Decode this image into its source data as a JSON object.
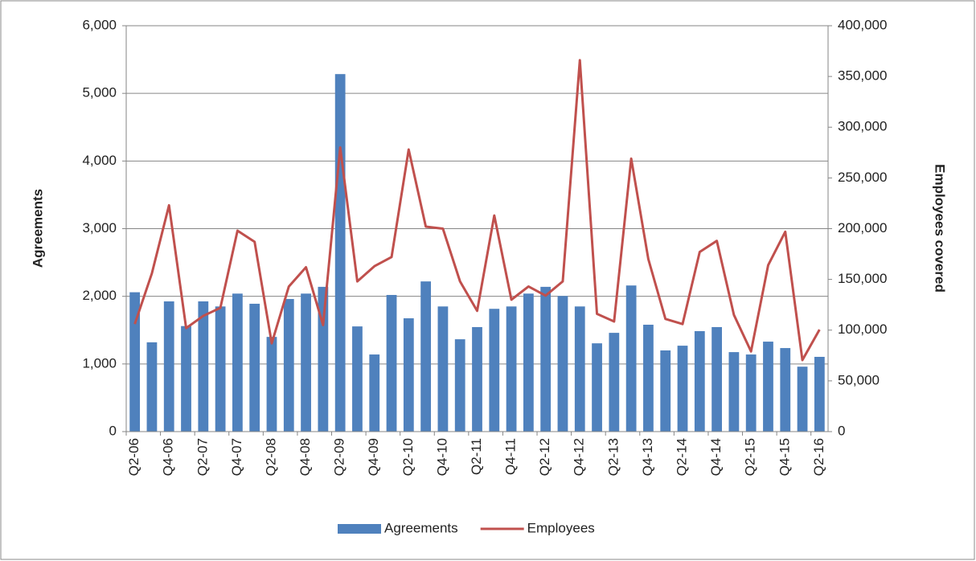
{
  "chart_data": {
    "type": "bar-line",
    "categories": [
      "Q2-06",
      null,
      "Q4-06",
      null,
      "Q2-07",
      null,
      "Q4-07",
      null,
      "Q2-08",
      null,
      "Q4-08",
      null,
      "Q2-09",
      null,
      "Q4-09",
      null,
      "Q2-10",
      null,
      "Q4-10",
      null,
      "Q2-11",
      null,
      "Q4-11",
      null,
      "Q2-12",
      null,
      "Q4-12",
      null,
      "Q2-13",
      null,
      "Q4-13",
      null,
      "Q2-14",
      null,
      "Q4-14",
      null,
      "Q2-15",
      null,
      "Q4-15",
      null,
      "Q2-16"
    ],
    "series": [
      {
        "name": "Agreements",
        "type": "bar",
        "color": "#4f81bd",
        "axis": "y",
        "values": [
          2060,
          1320,
          1925,
          1560,
          1925,
          1850,
          2040,
          1890,
          1400,
          1960,
          2040,
          2140,
          5285,
          1555,
          1140,
          2020,
          1675,
          2220,
          1850,
          1365,
          1545,
          1815,
          1850,
          2040,
          2140,
          2005,
          1850,
          1305,
          1460,
          2160,
          1580,
          1200,
          1270,
          1485,
          1545,
          1175,
          1140,
          1330,
          1235,
          960,
          1105
        ]
      },
      {
        "name": "Employees",
        "type": "line",
        "color": "#c0504d",
        "axis": "y2",
        "values": [
          106000,
          156000,
          223000,
          102000,
          114000,
          122000,
          198000,
          187000,
          87000,
          143000,
          162000,
          105000,
          280000,
          148000,
          163000,
          172000,
          278000,
          202000,
          200000,
          148000,
          119000,
          213000,
          130000,
          143000,
          134000,
          148000,
          366000,
          116000,
          108500,
          269000,
          170000,
          111000,
          106000,
          177000,
          188000,
          115000,
          79000,
          164000,
          197000,
          70500,
          100500
        ]
      }
    ],
    "y_label": "Agreements",
    "y2_label": "Employees covered",
    "ylim": [
      0,
      6000
    ],
    "yticks": [
      0,
      {
        "value": 1000,
        "label": "1,000"
      },
      {
        "value": 2000,
        "label": "2,000"
      },
      {
        "value": 3000,
        "label": "3,000"
      },
      {
        "value": 4000,
        "label": "4,000"
      },
      {
        "value": 5000,
        "label": "5,000"
      },
      {
        "value": 6000,
        "label": "6,000"
      }
    ],
    "y2lim": [
      0,
      400000
    ],
    "y2ticks": [
      0,
      {
        "value": 50000,
        "label": "50,000"
      },
      {
        "value": 100000,
        "label": "100,000"
      },
      {
        "value": 150000,
        "label": "150,000"
      },
      {
        "value": 200000,
        "label": "200,000"
      },
      {
        "value": 250000,
        "label": "250,000"
      },
      {
        "value": 300000,
        "label": "300,000"
      },
      {
        "value": 350000,
        "label": "350,000"
      },
      {
        "value": 400000,
        "label": "400,000"
      }
    ],
    "grid": true,
    "legend": "bottom"
  }
}
